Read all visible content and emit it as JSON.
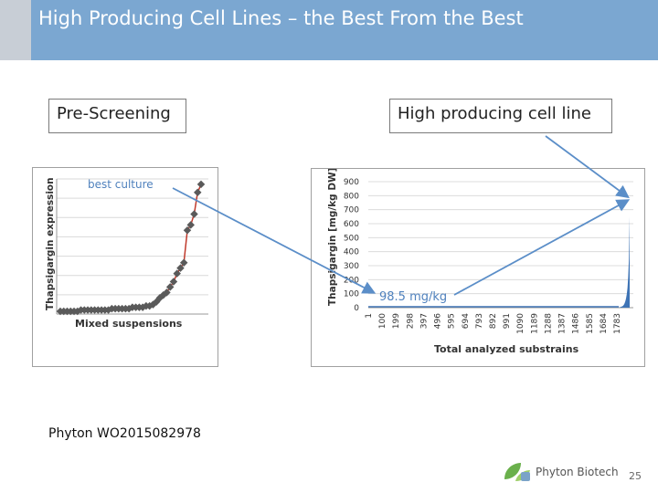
{
  "slide": {
    "title": "High Producing Cell Lines – the Best From the Best",
    "label_left": "Pre-Screening",
    "label_right": "High producing cell line",
    "reference": "Phyton WO2015082978",
    "company": "Phyton Biotech",
    "page_number": "25"
  },
  "colors": {
    "title_bar": "#7ba7d1",
    "left_series": "#c0392b",
    "left_markers": "#5a5a5a",
    "right_bars": "#3f74b5",
    "arrow": "#5b8ec8"
  },
  "chart_data": [
    {
      "type": "line",
      "title": "",
      "annotation": "best culture",
      "xlabel": "Mixed suspensions",
      "ylabel": "Thapsigargin expression",
      "grid": true,
      "ylim": [
        0,
        1
      ],
      "values": [
        0.02,
        0.02,
        0.02,
        0.02,
        0.02,
        0.02,
        0.03,
        0.03,
        0.03,
        0.03,
        0.03,
        0.03,
        0.03,
        0.03,
        0.03,
        0.04,
        0.04,
        0.04,
        0.04,
        0.04,
        0.04,
        0.05,
        0.05,
        0.05,
        0.05,
        0.06,
        0.06,
        0.07,
        0.09,
        0.12,
        0.14,
        0.16,
        0.2,
        0.24,
        0.3,
        0.34,
        0.38,
        0.62,
        0.66,
        0.74,
        0.9,
        0.96
      ]
    },
    {
      "type": "area",
      "title": "",
      "annotation": "98.5 mg/kg",
      "xlabel": "Total analyzed substrains",
      "ylabel": "Thapsigargin [mg/kg DW]",
      "grid": true,
      "ylim": [
        0,
        900
      ],
      "yticks": [
        "0",
        "100",
        "200",
        "300",
        "400",
        "500",
        "600",
        "700",
        "800",
        "900"
      ],
      "xticks": [
        "1",
        "100",
        "199",
        "298",
        "397",
        "496",
        "595",
        "694",
        "793",
        "892",
        "991",
        "1090",
        "1189",
        "1288",
        "1387",
        "1486",
        "1585",
        "1684",
        "1783"
      ],
      "x_total": 1830,
      "max_value": 650,
      "series": [
        {
          "name": "substrains",
          "values": [
            0,
            2,
            4,
            6,
            8,
            10,
            14,
            20,
            30,
            45,
            65,
            95,
            140,
            220,
            350,
            650
          ]
        }
      ]
    }
  ]
}
